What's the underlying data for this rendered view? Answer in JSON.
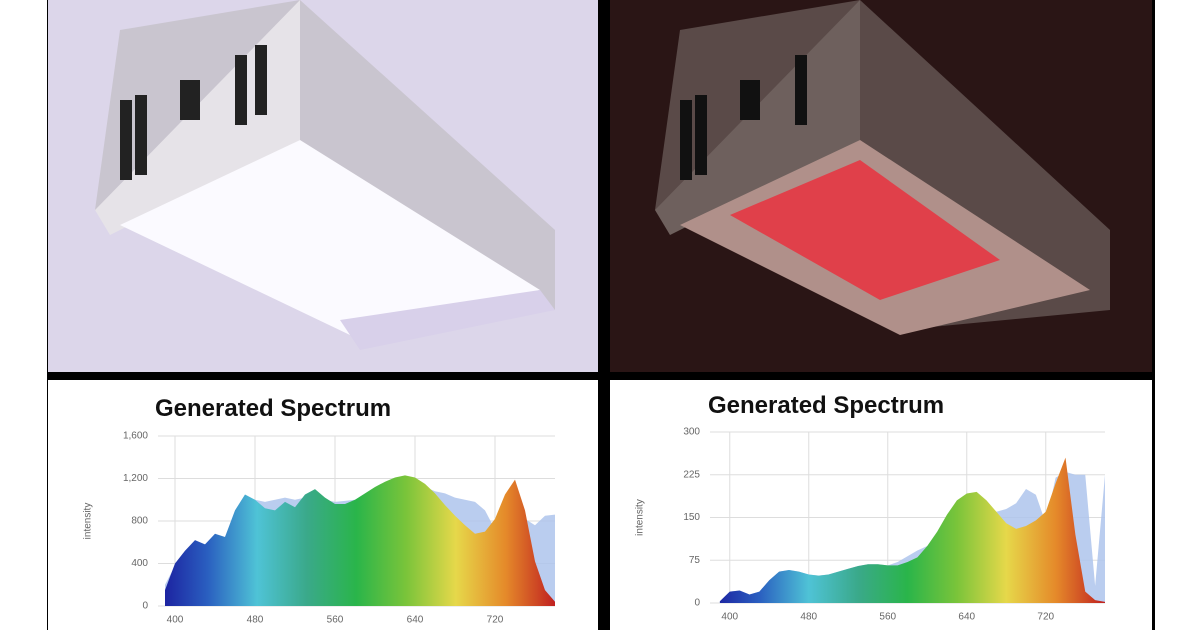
{
  "chart_data": [
    {
      "type": "area",
      "title": "Generated Spectrum",
      "y_label": "intensity",
      "x": [
        390,
        400,
        410,
        420,
        430,
        440,
        450,
        460,
        470,
        480,
        490,
        500,
        510,
        520,
        530,
        540,
        550,
        560,
        570,
        580,
        590,
        600,
        610,
        620,
        630,
        640,
        650,
        660,
        670,
        680,
        690,
        700,
        710,
        720,
        730,
        740,
        750,
        760,
        770,
        780
      ],
      "series": [
        {
          "color": "#aec4ec",
          "values": [
            200,
            380,
            500,
            600,
            580,
            660,
            650,
            880,
            1000,
            1000,
            980,
            1000,
            1020,
            1000,
            1020,
            1030,
            1000,
            980,
            990,
            1000,
            1050,
            1100,
            1150,
            1180,
            1200,
            1180,
            1120,
            1080,
            1060,
            1020,
            1000,
            980,
            900,
            720,
            700,
            1150,
            820,
            760,
            850,
            860
          ]
        },
        {
          "gradient": [
            "#1a1a9c",
            "#2a5fc0",
            "#4fc3d6",
            "#3aa98a",
            "#2ab54a",
            "#7ac43a",
            "#e6d84a",
            "#e58a2a",
            "#c02020"
          ],
          "values": [
            150,
            400,
            520,
            620,
            580,
            680,
            650,
            900,
            1050,
            1000,
            920,
            900,
            980,
            930,
            1050,
            1100,
            1020,
            960,
            960,
            1000,
            1060,
            1120,
            1170,
            1210,
            1230,
            1210,
            1150,
            1060,
            950,
            850,
            760,
            680,
            700,
            820,
            1050,
            1190,
            900,
            420,
            150,
            40
          ]
        }
      ],
      "xlim": [
        383,
        780
      ],
      "xticks": [
        400,
        480,
        560,
        640,
        720
      ],
      "ylim": [
        0,
        1600
      ],
      "yticks": [
        0,
        400,
        800,
        {
          "value": 1200,
          "label": "1,200"
        },
        {
          "value": 1600,
          "label": "1,600"
        }
      ],
      "grid": true
    },
    {
      "type": "area",
      "title": "Generated Spectrum",
      "y_label": "intensity",
      "x": [
        390,
        400,
        410,
        420,
        430,
        440,
        450,
        460,
        470,
        480,
        490,
        500,
        510,
        520,
        530,
        540,
        550,
        560,
        570,
        580,
        590,
        600,
        610,
        620,
        630,
        640,
        650,
        660,
        670,
        680,
        690,
        700,
        710,
        720,
        730,
        740,
        750,
        760,
        770,
        780
      ],
      "series": [
        {
          "color": "#aec4ec",
          "values": [
            3,
            20,
            22,
            15,
            20,
            40,
            55,
            58,
            55,
            50,
            48,
            50,
            55,
            60,
            65,
            68,
            68,
            66,
            72,
            82,
            92,
            100,
            110,
            120,
            130,
            140,
            150,
            155,
            160,
            165,
            175,
            200,
            190,
            140,
            220,
            230,
            225,
            225,
            30,
            225
          ]
        },
        {
          "gradient": [
            "#1a1a9c",
            "#2a5fc0",
            "#4fc3d6",
            "#3aa98a",
            "#2ab54a",
            "#7ac43a",
            "#e6d84a",
            "#e58a2a",
            "#c02020"
          ],
          "values": [
            3,
            20,
            22,
            15,
            20,
            40,
            55,
            58,
            55,
            50,
            48,
            50,
            55,
            60,
            65,
            68,
            68,
            66,
            66,
            72,
            80,
            100,
            125,
            155,
            180,
            192,
            195,
            180,
            160,
            140,
            130,
            135,
            145,
            160,
            210,
            255,
            120,
            20,
            5,
            2
          ]
        }
      ],
      "xlim": [
        380,
        780
      ],
      "xticks": [
        400,
        480,
        560,
        640,
        720
      ],
      "ylim": [
        0,
        300
      ],
      "yticks": [
        0,
        75,
        150,
        225,
        300
      ],
      "grid": true
    }
  ]
}
